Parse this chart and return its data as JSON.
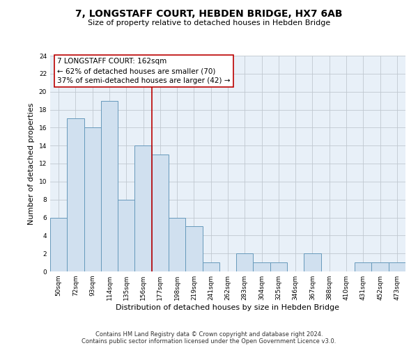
{
  "title": "7, LONGSTAFF COURT, HEBDEN BRIDGE, HX7 6AB",
  "subtitle": "Size of property relative to detached houses in Hebden Bridge",
  "xlabel": "Distribution of detached houses by size in Hebden Bridge",
  "ylabel": "Number of detached properties",
  "bar_labels": [
    "50sqm",
    "72sqm",
    "93sqm",
    "114sqm",
    "135sqm",
    "156sqm",
    "177sqm",
    "198sqm",
    "219sqm",
    "241sqm",
    "262sqm",
    "283sqm",
    "304sqm",
    "325sqm",
    "346sqm",
    "367sqm",
    "388sqm",
    "410sqm",
    "431sqm",
    "452sqm",
    "473sqm"
  ],
  "bar_values": [
    6,
    17,
    16,
    19,
    8,
    14,
    13,
    6,
    5,
    1,
    0,
    2,
    1,
    1,
    0,
    2,
    0,
    0,
    1,
    1,
    1
  ],
  "bar_color": "#d0e0ef",
  "bar_edge_color": "#6699bb",
  "property_line_x": 5.5,
  "property_line_color": "#bb0000",
  "annotation_line1": "7 LONGSTAFF COURT: 162sqm",
  "annotation_line2": "← 62% of detached houses are smaller (70)",
  "annotation_line3": "37% of semi-detached houses are larger (42) →",
  "annotation_box_color": "#ffffff",
  "annotation_box_edge": "#bb0000",
  "ylim": [
    0,
    24
  ],
  "yticks": [
    0,
    2,
    4,
    6,
    8,
    10,
    12,
    14,
    16,
    18,
    20,
    22,
    24
  ],
  "footnote1": "Contains HM Land Registry data © Crown copyright and database right 2024.",
  "footnote2": "Contains public sector information licensed under the Open Government Licence v3.0.",
  "title_fontsize": 10,
  "subtitle_fontsize": 8,
  "xlabel_fontsize": 8,
  "ylabel_fontsize": 8,
  "tick_fontsize": 6.5,
  "annotation_fontsize": 7.5,
  "footnote_fontsize": 6,
  "background_color": "#ffffff",
  "plot_bg_color": "#e8f0f8",
  "grid_color": "#c0c8d0"
}
